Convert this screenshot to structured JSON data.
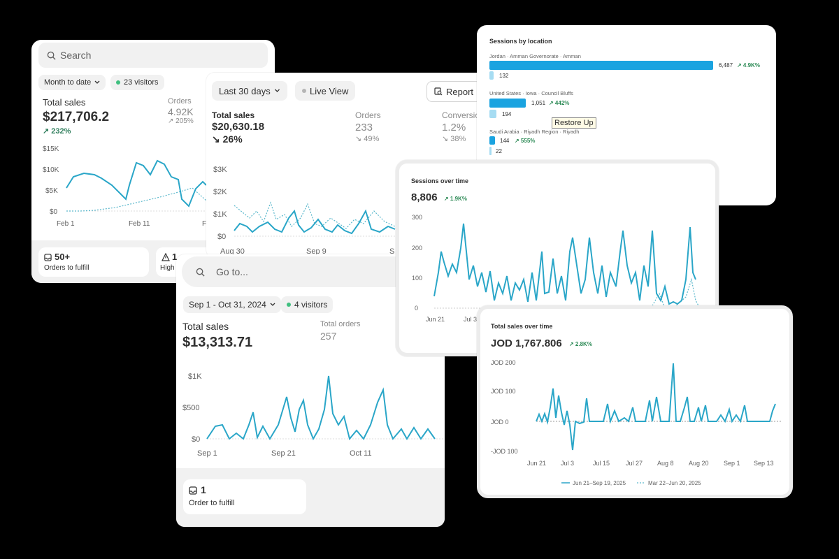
{
  "card1": {
    "search_placeholder": "Search",
    "date_filter": "Month to date",
    "visitors": "23 visitors",
    "total_sales_label": "Total sales",
    "total_sales_value": "$217,706.2",
    "total_sales_change": "↗ 232%",
    "orders_label": "Orders",
    "orders_value": "4.92K",
    "orders_change": "↗ 205%",
    "y_ticks": [
      "$15K",
      "$10K",
      "$5K",
      "$0"
    ],
    "x_ticks": [
      "Feb 1",
      "Feb 11",
      "Fe"
    ],
    "fulfill_count": "50+",
    "fulfill_label": "Orders to fulfill",
    "risk_count": "1",
    "risk_label": "High"
  },
  "card2": {
    "date_filter": "Last 30 days",
    "live_view": "Live View",
    "report_button": "Report",
    "total_sales_label": "Total sales",
    "total_sales_value": "$20,630.18",
    "total_sales_change": "↘ 26%",
    "orders_label": "Orders",
    "orders_value": "233",
    "orders_change": "↘ 49%",
    "conversion_label": "Conversion",
    "conversion_value": "1.2%",
    "conversion_change": "↘ 38%",
    "y_ticks": [
      "$3K",
      "$2K",
      "$1K",
      "$0"
    ],
    "x_ticks": [
      "Aug 30",
      "Sep 9",
      "S"
    ]
  },
  "card3": {
    "goto_placeholder": "Go to...",
    "date_filter": "Sep 1 - Oct 31, 2024",
    "visitors": "4 visitors",
    "total_sales_label": "Total sales",
    "total_sales_value": "$13,313.71",
    "total_orders_label": "Total orders",
    "total_orders_value": "257",
    "y_ticks": [
      "$1K",
      "$500",
      "$0"
    ],
    "x_ticks": [
      "Sep 1",
      "Sep 21",
      "Oct 11"
    ],
    "fulfill_count": "1",
    "fulfill_label": "Order to fulfill"
  },
  "card4": {
    "title": "Sessions by location",
    "tooltip": "Restore Up",
    "locations": [
      {
        "name": "Jordan · Amman Governorate · Amman",
        "current": "6,487",
        "change": "↗ 4.9K%",
        "previous": "132"
      },
      {
        "name": "United States · Iowa · Council Bluffs",
        "current": "1,051",
        "change": "↗ 442%",
        "previous": "194"
      },
      {
        "name": "Saudi Arabia · Riyadh Region · Riyadh",
        "current": "144",
        "change": "↗ 555%",
        "previous": "22"
      }
    ]
  },
  "card5": {
    "title": "Sessions over time",
    "value": "8,806",
    "change": "↗ 1.9K%",
    "y_ticks": [
      "300",
      "200",
      "100",
      "0"
    ],
    "x_ticks": [
      "Jun 21",
      "Jul 3"
    ]
  },
  "card6": {
    "title": "Total sales over time",
    "value": "JOD 1,767.806",
    "change": "↗ 2.8K%",
    "y_ticks": [
      "JOD 200",
      "JOD 100",
      "JOD 0",
      "-JOD 100"
    ],
    "x_ticks": [
      "Jun 21",
      "Jul 3",
      "Jul 15",
      "Jul 27",
      "Aug 8",
      "Aug 20",
      "Sep 1",
      "Sep 13"
    ],
    "legend_current": "Jun 21–Sep 19, 2025",
    "legend_previous": "Mar 22–Jun 20, 2025"
  },
  "colors": {
    "background": "#000000",
    "line_primary": "#2aa6c8",
    "line_secondary": "#5bb8cc",
    "bar_current": "#1aa3e0",
    "bar_previous": "#a6dcf2",
    "positive": "#2e7d5b",
    "visitor_dot": "#3fbf7f"
  },
  "icons": [
    "search-icon",
    "chevron-down-icon",
    "report-icon",
    "inbox-icon",
    "warning-icon"
  ]
}
